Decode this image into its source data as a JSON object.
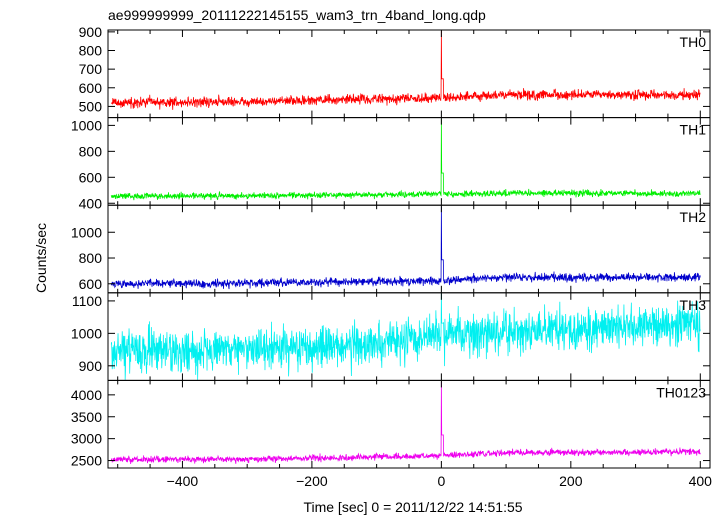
{
  "chart_data": {
    "type": "line",
    "title": "ae999999999_20111222145155_wam3_trn_4band_long.qdp",
    "xlabel": "Time [sec] 0 = 2011/12/22 14:51:55",
    "ylabel": "Counts/sec",
    "xlim": [
      -515,
      415
    ],
    "xticks": [
      -400,
      -200,
      0,
      200,
      400
    ],
    "grid": false,
    "legend": "none",
    "series": [
      {
        "name": "TH0",
        "color": "#ff0000",
        "ylim": [
          440,
          910
        ],
        "yticks": [
          500,
          600,
          700,
          800,
          900
        ],
        "baseline": [
          [
            -510,
            520
          ],
          [
            -300,
            525
          ],
          [
            0,
            548
          ],
          [
            100,
            562
          ],
          [
            400,
            560
          ]
        ],
        "noise": 45,
        "peak": [
          0,
          905
        ]
      },
      {
        "name": "TH1",
        "color": "#00ee00",
        "ylim": [
          385,
          1060
        ],
        "yticks": [
          400,
          600,
          800,
          1000
        ],
        "baseline": [
          [
            -510,
            455
          ],
          [
            -300,
            458
          ],
          [
            0,
            470
          ],
          [
            100,
            478
          ],
          [
            400,
            475
          ]
        ],
        "noise": 40,
        "peak": [
          0,
          1050
        ]
      },
      {
        "name": "TH2",
        "color": "#0000cc",
        "ylim": [
          530,
          1210
        ],
        "yticks": [
          600,
          800,
          1000
        ],
        "baseline": [
          [
            -510,
            600
          ],
          [
            -300,
            605
          ],
          [
            0,
            625
          ],
          [
            100,
            650
          ],
          [
            400,
            650
          ]
        ],
        "noise": 55,
        "peak": [
          0,
          1200
        ]
      },
      {
        "name": "TH3",
        "color": "#00f0f0",
        "ylim": [
          855,
          1125
        ],
        "yticks": [
          900,
          1000,
          1100
        ],
        "baseline": [
          [
            -510,
            945
          ],
          [
            -300,
            950
          ],
          [
            -100,
            965
          ],
          [
            0,
            995
          ],
          [
            100,
            1005
          ],
          [
            400,
            1030
          ]
        ],
        "noise": 110,
        "peak": [
          0,
          1125
        ]
      },
      {
        "name": "TH0123",
        "color": "#ee00ee",
        "ylim": [
          2330,
          4330
        ],
        "yticks": [
          2500,
          3000,
          3500,
          4000
        ],
        "baseline": [
          [
            -510,
            2520
          ],
          [
            -300,
            2530
          ],
          [
            0,
            2610
          ],
          [
            100,
            2680
          ],
          [
            400,
            2700
          ]
        ],
        "noise": 120,
        "peak": [
          0,
          4300
        ]
      }
    ]
  }
}
